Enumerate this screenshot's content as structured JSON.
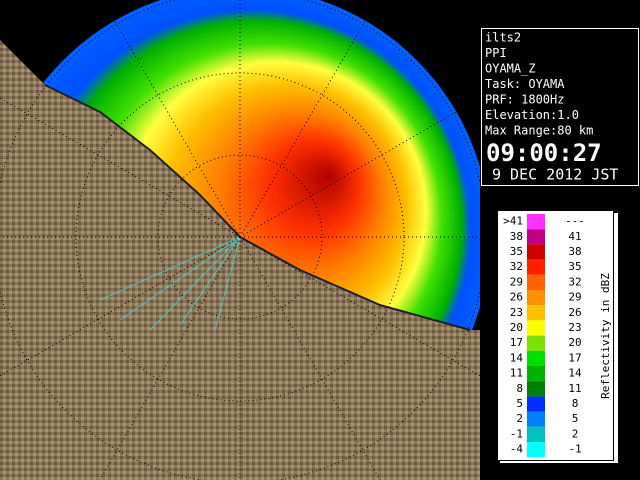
{
  "info": {
    "lines": [
      "ilts2",
      "PPI",
      "OYAMA_Z",
      "Task: OYAMA",
      "PRF: 1800Hz",
      "Elevation:1.0",
      "Max Range:80 km"
    ],
    "time": "09:00:27",
    "date": "9 DEC 2012 JST"
  },
  "legend": {
    "title": "Reflectivity in dBZ",
    "rows": [
      {
        "low": ">41",
        "high": "---",
        "color": "#ff30ff"
      },
      {
        "low": "38",
        "high": "41",
        "color": "#c00080"
      },
      {
        "low": "35",
        "high": "38",
        "color": "#d00000"
      },
      {
        "low": "32",
        "high": "35",
        "color": "#ff2000"
      },
      {
        "low": "29",
        "high": "32",
        "color": "#ff6000"
      },
      {
        "low": "26",
        "high": "29",
        "color": "#ff9000"
      },
      {
        "low": "23",
        "high": "26",
        "color": "#ffc000"
      },
      {
        "low": "20",
        "high": "23",
        "color": "#ffff00"
      },
      {
        "low": "17",
        "high": "20",
        "color": "#80e000"
      },
      {
        "low": "14",
        "high": "17",
        "color": "#00e000"
      },
      {
        "low": "11",
        "high": "14",
        "color": "#00b000"
      },
      {
        "low": "8",
        "high": "11",
        "color": "#008000"
      },
      {
        "low": "5",
        "high": "8",
        "color": "#0030ff"
      },
      {
        "low": "2",
        "high": "5",
        "color": "#0080ff"
      },
      {
        "low": "-1",
        "high": "2",
        "color": "#00c0c0"
      },
      {
        "low": "-4",
        "high": "-1",
        "color": "#00ffff"
      }
    ]
  }
}
